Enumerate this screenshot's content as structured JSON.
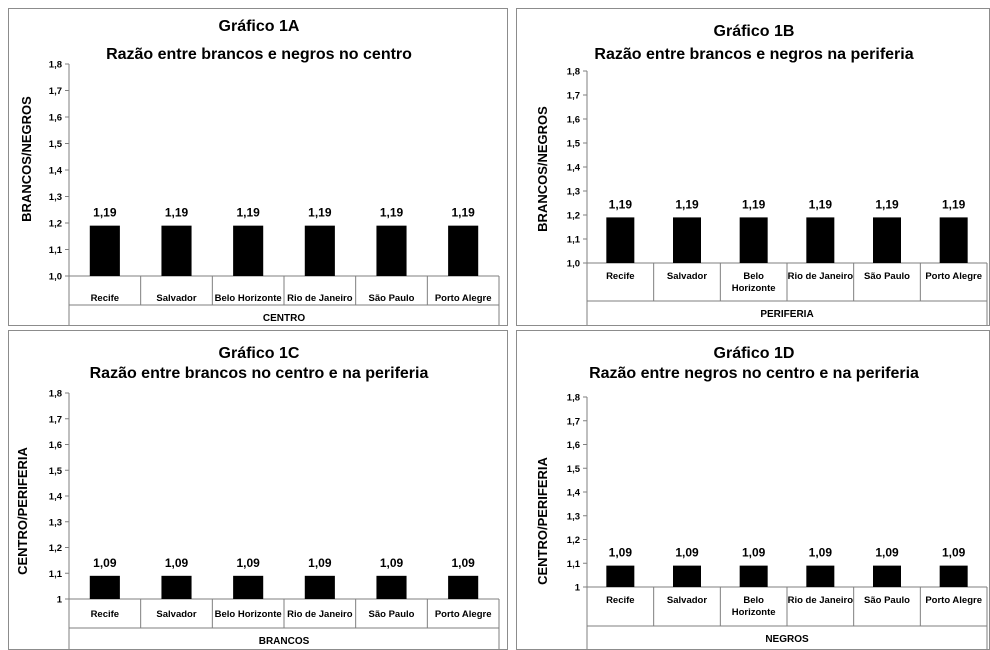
{
  "chart_data": [
    {
      "type": "bar",
      "title": "Gráfico 1A",
      "subtitle": "Razão entre brancos e negros no centro",
      "ylabel": "BRANCOS/NEGROS",
      "xlabel": "CENTRO",
      "categories": [
        "Recife",
        "Salvador",
        "Belo Horizonte",
        "Rio de Janeiro",
        "São Paulo",
        "Porto Alegre"
      ],
      "values": [
        1.19,
        1.19,
        1.19,
        1.19,
        1.19,
        1.19
      ],
      "value_labels": [
        "1,19",
        "1,19",
        "1,19",
        "1,19",
        "1,19",
        "1,19"
      ],
      "ylim": [
        1.0,
        1.8
      ],
      "yticks": [
        "1,0",
        "1,1",
        "1,2",
        "1,3",
        "1,4",
        "1,5",
        "1,6",
        "1,7",
        "1,8"
      ],
      "bar_color": "#000000",
      "grid": false,
      "legend": "none"
    },
    {
      "type": "bar",
      "title": "Gráfico 1B",
      "subtitle": "Razão entre brancos e negros na periferia",
      "ylabel": "BRANCOS/NEGROS",
      "xlabel": "PERIFERIA",
      "categories": [
        "Recife",
        "Salvador",
        "Belo Horizonte",
        "Rio de Janeiro",
        "São Paulo",
        "Porto Alegre"
      ],
      "values": [
        1.19,
        1.19,
        1.19,
        1.19,
        1.19,
        1.19
      ],
      "value_labels": [
        "1,19",
        "1,19",
        "1,19",
        "1,19",
        "1,19",
        "1,19"
      ],
      "ylim": [
        1.0,
        1.8
      ],
      "yticks": [
        "1,0",
        "1,1",
        "1,2",
        "1,3",
        "1,4",
        "1,5",
        "1,6",
        "1,7",
        "1,8"
      ],
      "bar_color": "#000000",
      "grid": false,
      "legend": "none"
    },
    {
      "type": "bar",
      "title": "Gráfico 1C",
      "subtitle": "Razão entre brancos no centro e na periferia",
      "ylabel": "CENTRO/PERIFERIA",
      "xlabel": "BRANCOS",
      "categories": [
        "Recife",
        "Salvador",
        "Belo Horizonte",
        "Rio de Janeiro",
        "São Paulo",
        "Porto Alegre"
      ],
      "values": [
        1.09,
        1.09,
        1.09,
        1.09,
        1.09,
        1.09
      ],
      "value_labels": [
        "1,09",
        "1,09",
        "1,09",
        "1,09",
        "1,09",
        "1,09"
      ],
      "ylim": [
        1.0,
        1.8
      ],
      "yticks": [
        "1",
        "1,1",
        "1,2",
        "1,3",
        "1,4",
        "1,5",
        "1,6",
        "1,7",
        "1,8"
      ],
      "bar_color": "#000000",
      "grid": false,
      "legend": "none"
    },
    {
      "type": "bar",
      "title": "Gráfico 1D",
      "subtitle": "Razão entre negros no centro e na periferia",
      "ylabel": "CENTRO/PERIFERIA",
      "xlabel": "NEGROS",
      "categories": [
        "Recife",
        "Salvador",
        "Belo Horizonte",
        "Rio de Janeiro",
        "São Paulo",
        "Porto Alegre"
      ],
      "values": [
        1.09,
        1.09,
        1.09,
        1.09,
        1.09,
        1.09
      ],
      "value_labels": [
        "1,09",
        "1,09",
        "1,09",
        "1,09",
        "1,09",
        "1,09"
      ],
      "ylim": [
        1.0,
        1.8
      ],
      "yticks": [
        "1",
        "1,1",
        "1,2",
        "1,3",
        "1,4",
        "1,5",
        "1,6",
        "1,7",
        "1,8"
      ],
      "bar_color": "#000000",
      "grid": false,
      "legend": "none"
    }
  ]
}
